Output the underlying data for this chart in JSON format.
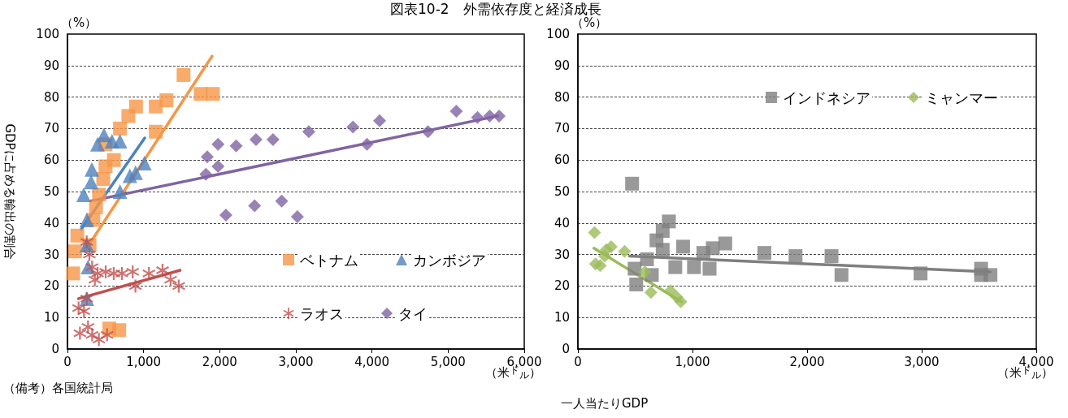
{
  "chart_data": [
    {
      "type": "scatter",
      "title": "図表10-2　外需依存度と経済成長",
      "ylabel": "GDPに占める輸出の割合",
      "annotations": [
        "（%）",
        "（米$^{ド}$$_{ル}$）",
        "（備考）各国統計局"
      ],
      "xlim": [
        0,
        6000
      ],
      "xticks": [
        0,
        {
          "value": 1000,
          "label": "1,000"
        },
        {
          "value": 2000,
          "label": "2,000"
        },
        {
          "value": 3000,
          "label": "3,000"
        },
        {
          "value": 4000,
          "label": "4,000"
        },
        {
          "value": 5000,
          "label": "5,000"
        },
        {
          "value": 6000,
          "label": "6,000"
        }
      ],
      "ylim": [
        0,
        100
      ],
      "yticks": [
        0,
        10,
        20,
        30,
        40,
        50,
        60,
        70,
        80,
        90,
        100
      ],
      "grid": "y",
      "legend": "bottom right",
      "line_style": "solid",
      "series": [
        {
          "name": "ベトナム",
          "color": "#f79646",
          "marker": "square",
          "x": [
            130,
            100,
            75,
            290,
            340,
            375,
            415,
            470,
            500,
            610,
            500,
            690,
            800,
            900,
            1160,
            1300,
            1160,
            1525,
            1750,
            1910,
            550,
            680
          ],
          "values": [
            36,
            31,
            24,
            33,
            41,
            45,
            49,
            54,
            58,
            60,
            65,
            70,
            74,
            77,
            77,
            79,
            69,
            87,
            81,
            81,
            6.5,
            6
          ]
        },
        {
          "name": "カンボジア",
          "color": "#4f81bd",
          "marker": "triangle",
          "x": [
            213,
            310,
            320,
            395,
            480,
            585,
            690,
            690,
            820,
            895,
            1010,
            255,
            255,
            270,
            255
          ],
          "values": [
            49,
            53,
            57,
            65,
            68,
            66,
            66,
            50,
            55,
            56,
            59,
            41,
            33,
            26,
            16
          ]
        },
        {
          "name": "ラオス",
          "color": "#c0504d",
          "marker": "cross",
          "x": [
            146,
            217,
            164,
            270,
            324,
            413,
            520,
            253,
            288,
            324,
            395,
            360,
            502,
            608,
            715,
            857,
            1070,
            1249,
            1355,
            1462,
            893,
            253
          ],
          "values": [
            13,
            12,
            5,
            7,
            4.5,
            3,
            4.5,
            34,
            30,
            26,
            24,
            22,
            24.5,
            24,
            24,
            24.5,
            24,
            25,
            22,
            20,
            20,
            16
          ]
        },
        {
          "name": "タイ",
          "color": "#8064a2",
          "marker": "diamond",
          "x": [
            1818,
            1836,
            1978,
            1978,
            2216,
            2476,
            2700,
            3170,
            3750,
            4100,
            3935,
            4735,
            5108,
            5386,
            5546,
            5670,
            2081,
            2458,
            2814,
            3020
          ],
          "values": [
            55.5,
            61,
            65,
            58,
            64.5,
            66.5,
            66.5,
            69,
            70.5,
            72.5,
            65,
            69,
            75.5,
            73.5,
            74,
            74,
            42.5,
            45.5,
            47,
            42
          ]
        },
        {
          "type": "line",
          "color": "#f79646",
          "x": [
            280,
            1900
          ],
          "values": [
            33,
            93
          ]
        },
        {
          "type": "line",
          "color": "#4f81bd",
          "x": [
            180,
            1015
          ],
          "values": [
            38,
            67
          ]
        },
        {
          "type": "line",
          "color": "#c0504d",
          "x": [
            146,
            1480
          ],
          "values": [
            16,
            25
          ]
        },
        {
          "type": "line",
          "color": "#8064a2",
          "x": [
            306,
            5650
          ],
          "values": [
            47,
            74
          ]
        }
      ]
    },
    {
      "type": "scatter",
      "xlabel": "一人当たりGDP",
      "annotations": [
        "（%）",
        "（米$^{ド}$$_{ル}$）"
      ],
      "xlim": [
        0,
        4000
      ],
      "xticks": [
        0,
        {
          "value": 1000,
          "label": "1,000"
        },
        {
          "value": 2000,
          "label": "2,000"
        },
        {
          "value": 3000,
          "label": "3,000"
        },
        {
          "value": 4000,
          "label": "4,000"
        }
      ],
      "ylim": [
        0,
        100
      ],
      "yticks": [
        0,
        10,
        20,
        30,
        40,
        50,
        60,
        70,
        80,
        90,
        100
      ],
      "grid": "y",
      "legend": "top right",
      "line_style": "solid",
      "series": [
        {
          "name": "インドネシア",
          "color": "#7f7f7f",
          "marker": "square",
          "x": [
            473,
            794,
            740,
            686,
            918,
            740,
            603,
            495,
            509,
            645,
            850,
            1013,
            1095,
            1177,
            1149,
            1286,
            1627,
            1899,
            2213,
            2300,
            2990,
            3518,
            3600,
            3518
          ],
          "values": [
            52.5,
            40.5,
            37.5,
            34.5,
            32.5,
            31.5,
            28.5,
            25.5,
            20.5,
            23.5,
            26,
            26,
            30.5,
            32,
            25.5,
            33.5,
            30.5,
            29.5,
            29.5,
            23.5,
            24,
            25.5,
            23.5,
            23.5
          ]
        },
        {
          "name": "ミャンマー",
          "color": "#9bbb59",
          "marker": "diamond",
          "x": [
            145,
            290,
            408,
            248,
            154,
            195,
            234,
            585,
            637,
            808,
            863,
            898
          ],
          "values": [
            37,
            32.5,
            31,
            31.5,
            27,
            26.5,
            29.5,
            24.5,
            18,
            18.5,
            16.5,
            15
          ]
        },
        {
          "type": "line",
          "color": "#7f7f7f",
          "x": [
            450,
            3600
          ],
          "values": [
            29.5,
            24.5
          ]
        },
        {
          "type": "line",
          "color": "#9bbb59",
          "x": [
            140,
            904
          ],
          "values": [
            32,
            15
          ]
        }
      ]
    }
  ]
}
